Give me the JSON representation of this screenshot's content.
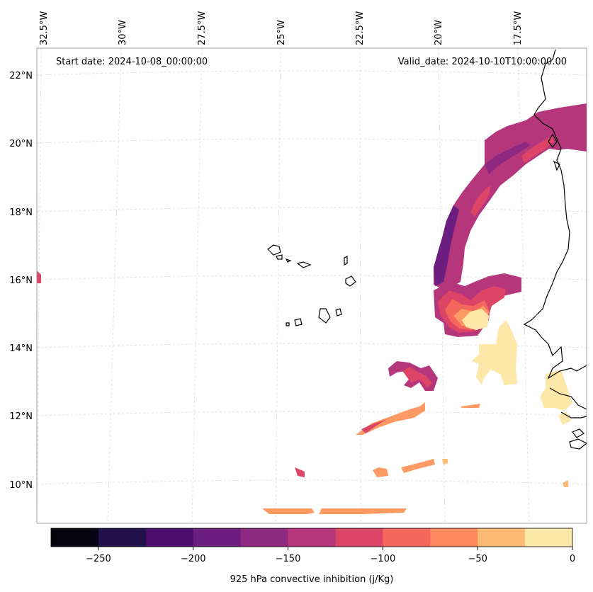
{
  "chart_data": {
    "type": "map",
    "annotations": {
      "start_date": "Start date: 2024-10-08_00:00:00",
      "valid_date": "Valid_date: 2024-10-10T10:00:00.00"
    },
    "longitude_labels": [
      "32.5°W",
      "30°W",
      "27.5°W",
      "25°W",
      "22.5°W",
      "20°W",
      "17.5°W"
    ],
    "latitude_labels": [
      "22°N",
      "20°N",
      "18°N",
      "16°N",
      "14°N",
      "12°N",
      "10°N"
    ],
    "colorbar": {
      "label": "925 hPa convective inhibition (j/Kg)",
      "tick_labels": [
        "−250",
        "−200",
        "−150",
        "−100",
        "−50",
        "0"
      ],
      "levels": [
        -275,
        -250,
        -225,
        -200,
        -175,
        -150,
        -125,
        -100,
        -75,
        -50,
        -25,
        0
      ],
      "colors": [
        "#05030f",
        "#21114b",
        "#4b0c6b",
        "#6c1d80",
        "#8e2880",
        "#b5367a",
        "#dc4566",
        "#f3675c",
        "#fc8a5d",
        "#fdba75",
        "#fde7a9"
      ]
    }
  }
}
